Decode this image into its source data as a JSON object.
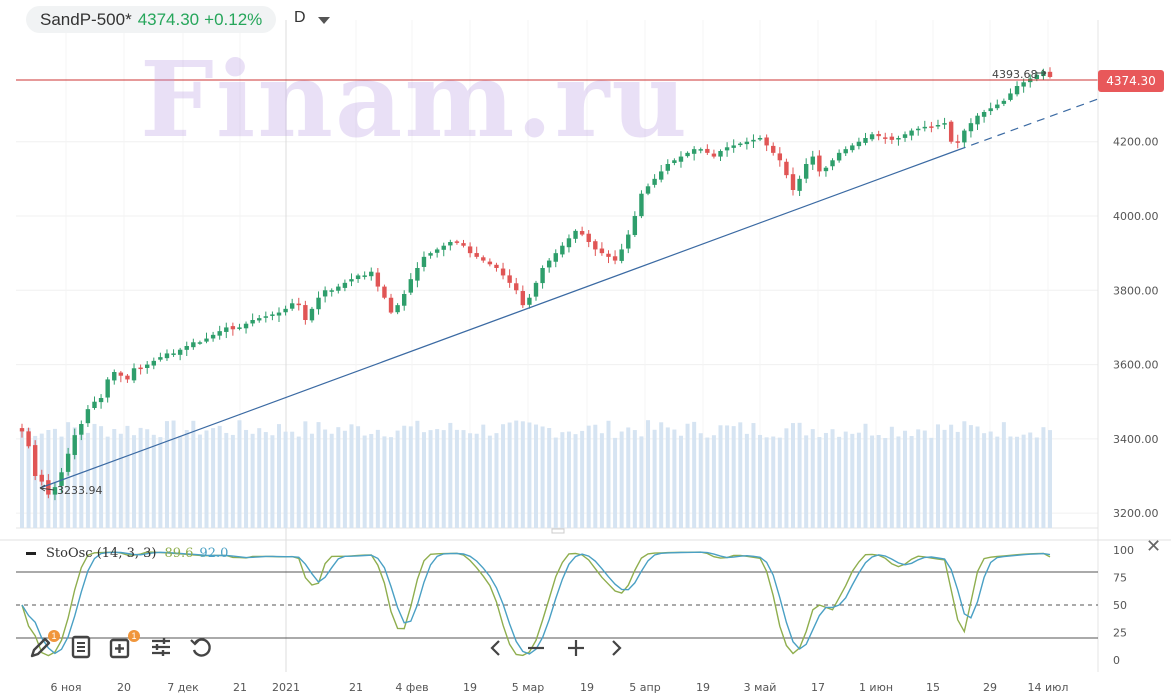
{
  "header": {
    "symbol": "SandP-500*",
    "price": "4374.30",
    "change": "+0.12%",
    "interval": "D"
  },
  "watermark": "Finam.ru",
  "last_price_tag": "4374.30",
  "colors": {
    "up": "#2e9e6b",
    "down": "#e05555",
    "volume": "#d6e4f2",
    "trend": "#3b6aa3",
    "price_line": "#cc3333",
    "stoch_k": "#8fae4e",
    "stoch_d": "#4aa0c4"
  },
  "oscillator": {
    "label": "StoOsc (14, 3, 3)",
    "k_value": "89.6",
    "d_value": "92.0",
    "ticks": [
      "100",
      "75",
      "50",
      "25",
      "0"
    ]
  },
  "chart_data": {
    "type": "candlestick",
    "ylim": [
      3160,
      4420
    ],
    "yticks": [
      "4200.00",
      "4000.00",
      "3800.00",
      "3600.00",
      "3400.00",
      "3200.00"
    ],
    "xticks": [
      "6 ноя",
      "20",
      "7 дек",
      "21",
      "2021",
      "21",
      "4 фев",
      "19",
      "5 мар",
      "19",
      "5 апр",
      "19",
      "3 май",
      "17",
      "1 июн",
      "15",
      "29",
      "14 июл"
    ],
    "annotations": {
      "low": "3233.94",
      "high": "4393.68"
    },
    "series_close": [
      3420,
      3380,
      3300,
      3285,
      3250,
      3270,
      3310,
      3360,
      3410,
      3440,
      3480,
      3500,
      3510,
      3560,
      3580,
      3570,
      3560,
      3590,
      3590,
      3600,
      3610,
      3620,
      3630,
      3630,
      3640,
      3650,
      3660,
      3660,
      3670,
      3680,
      3690,
      3700,
      3695,
      3700,
      3710,
      3720,
      3725,
      3730,
      3735,
      3740,
      3750,
      3765,
      3760,
      3720,
      3750,
      3780,
      3800,
      3800,
      3810,
      3820,
      3830,
      3840,
      3840,
      3850,
      3810,
      3780,
      3740,
      3760,
      3790,
      3830,
      3860,
      3890,
      3900,
      3910,
      3920,
      3930,
      3930,
      3920,
      3900,
      3890,
      3880,
      3870,
      3860,
      3840,
      3820,
      3800,
      3760,
      3780,
      3820,
      3860,
      3880,
      3900,
      3920,
      3940,
      3960,
      3950,
      3930,
      3910,
      3900,
      3890,
      3880,
      3910,
      3950,
      4000,
      4060,
      4080,
      4100,
      4120,
      4140,
      4150,
      4160,
      4170,
      4180,
      4180,
      4170,
      4160,
      4175,
      4185,
      4190,
      4195,
      4200,
      4205,
      4210,
      4190,
      4170,
      4150,
      4110,
      4070,
      4100,
      4140,
      4160,
      4120,
      4130,
      4150,
      4170,
      4180,
      4190,
      4200,
      4210,
      4220,
      4215,
      4210,
      4205,
      4210,
      4220,
      4230,
      4235,
      4240,
      4240,
      4245,
      4250,
      4200,
      4200,
      4230,
      4250,
      4270,
      4280,
      4290,
      4300,
      4310,
      4330,
      4350,
      4360,
      4370,
      4380,
      4390,
      4374.3
    ]
  },
  "toolbar": {
    "draw_badge": "1",
    "add_badge": "1"
  },
  "nav": {}
}
